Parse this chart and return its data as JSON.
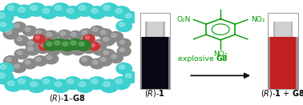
{
  "background_color": "#ffffff",
  "left_panel": {
    "label": "(ℛ)-1–G8",
    "label_fontsize": 7.0,
    "teal_color": "#3ecfcf",
    "gray_color": "#888888",
    "red_color": "#cc3333",
    "green_color": "#2d7d2d",
    "teal_highlight": "#a0eaea",
    "gray_highlight": "#bbbbbb"
  },
  "right_panel": {
    "green_color": "#009900",
    "arrow_color": "#111111",
    "vial1_liquid": "#0a0615",
    "vial2_liquid": "#c02020",
    "vial_glass": "#d8d8d8",
    "vial_neck_light": "#f5f5f5",
    "vial_top_white": "#ffffff",
    "label1": "(ℛ)-1",
    "label2": "(ℛ)-1 + G8",
    "explosive_text": "explosive ",
    "G8_text": "G8",
    "no2_ul": "O₂N",
    "no2_ur": "NO₂",
    "no2_bot": "NO₂",
    "label_fontsize": 7.0,
    "chem_fontsize": 6.5
  },
  "fig_width": 3.78,
  "fig_height": 1.31,
  "dpi": 100
}
